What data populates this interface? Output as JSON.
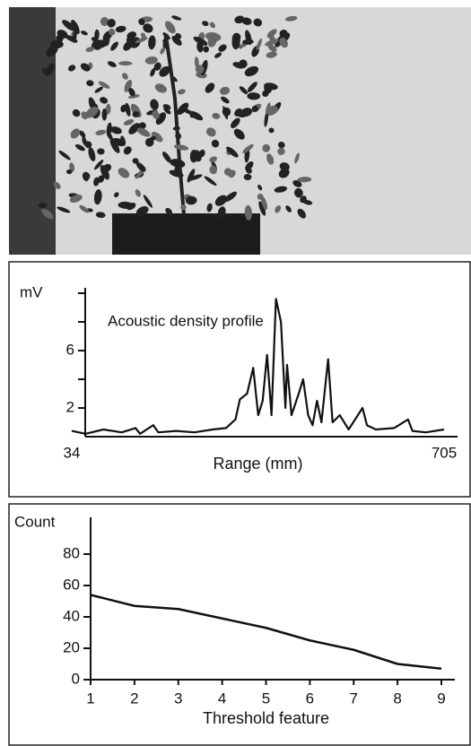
{
  "chart_data": [
    {
      "type": "line",
      "annotation": "Acoustic density profile",
      "ylabel": "mV",
      "xlabel": "Range (mm)",
      "xlim": [
        34,
        705
      ],
      "xticks": [
        34,
        705
      ],
      "ylim": [
        0,
        10
      ],
      "yticks": [
        2,
        6
      ],
      "yticks_minor": [
        4,
        8,
        10
      ],
      "color": "#111111",
      "x": [
        34,
        59,
        91,
        124,
        149,
        157,
        181,
        190,
        222,
        255,
        288,
        312,
        329,
        337,
        350,
        361,
        370,
        378,
        386,
        394,
        402,
        411,
        419,
        422,
        430,
        443,
        451,
        460,
        468,
        476,
        484,
        496,
        504,
        517,
        533,
        558,
        566,
        582,
        615,
        640,
        648,
        672,
        705
      ],
      "values": [
        0.4,
        0.2,
        0.5,
        0.3,
        0.6,
        0.2,
        0.8,
        0.3,
        0.4,
        0.3,
        0.5,
        0.6,
        1.2,
        2.6,
        3.0,
        4.8,
        1.5,
        2.5,
        5.7,
        1.5,
        9.6,
        8.0,
        2.0,
        5.0,
        1.5,
        3.0,
        4.0,
        1.5,
        0.8,
        2.5,
        1.0,
        5.4,
        1.0,
        1.5,
        0.5,
        2.0,
        0.8,
        0.5,
        0.6,
        1.2,
        0.4,
        0.3,
        0.5
      ]
    },
    {
      "type": "line",
      "ylabel": "Count",
      "xlabel": "Threshold feature",
      "xlim": [
        1,
        9
      ],
      "xticks": [
        1,
        2,
        3,
        4,
        5,
        6,
        7,
        8,
        9
      ],
      "ylim": [
        0,
        100
      ],
      "yticks": [
        0,
        20,
        40,
        60,
        80
      ],
      "color": "#111111",
      "x": [
        1,
        2,
        3,
        4,
        5,
        6,
        7,
        8,
        9
      ],
      "values": [
        54,
        47,
        45,
        39,
        33,
        25,
        19,
        10,
        7
      ]
    }
  ]
}
